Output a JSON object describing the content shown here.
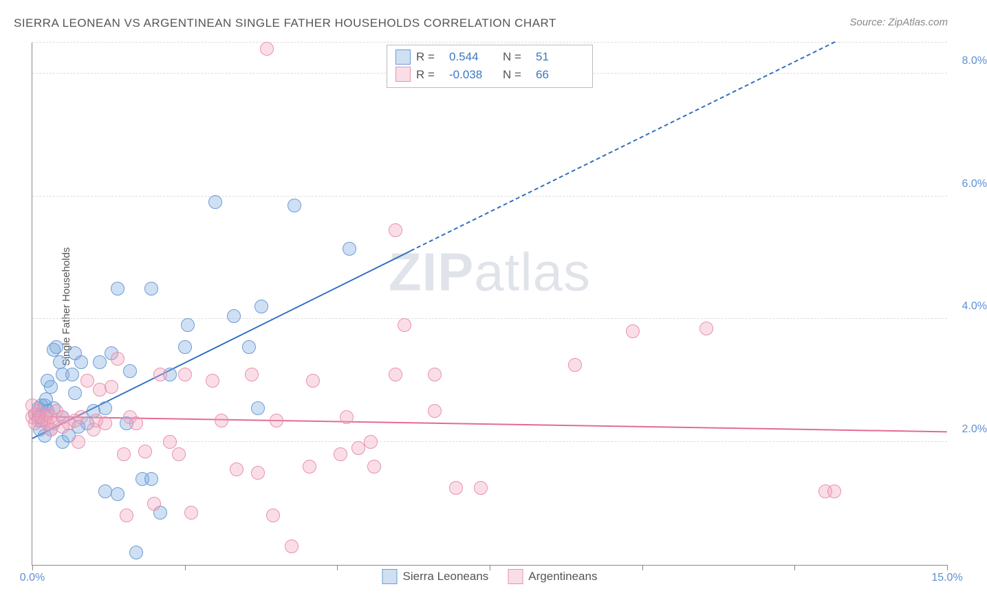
{
  "title": "SIERRA LEONEAN VS ARGENTINEAN SINGLE FATHER HOUSEHOLDS CORRELATION CHART",
  "source_prefix": "Source: ",
  "source_name": "ZipAtlas.com",
  "ylabel": "Single Father Households",
  "watermark_bold": "ZIP",
  "watermark_rest": "atlas",
  "chart": {
    "type": "scatter",
    "xlim": [
      0,
      15
    ],
    "ylim": [
      0,
      8.5
    ],
    "x_ticks": [
      0,
      2.5,
      5,
      7.5,
      10,
      12.5,
      15
    ],
    "x_tick_labels": {
      "0": "0.0%",
      "15": "15.0%"
    },
    "y_gridlines": [
      2,
      4,
      6,
      8,
      8.5
    ],
    "y_tick_labels": {
      "2": "2.0%",
      "4": "4.0%",
      "6": "6.0%",
      "8": "8.0%"
    },
    "background_color": "#ffffff",
    "grid_color": "#dddddd",
    "axis_color": "#888888",
    "marker_radius": 10,
    "marker_stroke_width": 1.5,
    "trend_solid_width": 2.5,
    "trend_dash_width": 2
  },
  "series": [
    {
      "name": "Sierra Leoneans",
      "fill": "rgba(120,165,220,0.35)",
      "stroke": "#6a9bd8",
      "trend_color": "#2f6fc0",
      "R": "0.544",
      "N": "51",
      "trend": {
        "x1": 0.0,
        "y1": 2.05,
        "x2": 6.2,
        "y2": 5.1,
        "x2_dash": 15.0,
        "y2_dash": 9.4
      },
      "points": [
        [
          0.05,
          2.45
        ],
        [
          0.1,
          2.4
        ],
        [
          0.1,
          2.55
        ],
        [
          0.12,
          2.2
        ],
        [
          0.15,
          2.6
        ],
        [
          0.15,
          2.35
        ],
        [
          0.2,
          2.6
        ],
        [
          0.2,
          2.1
        ],
        [
          0.22,
          2.7
        ],
        [
          0.25,
          3.0
        ],
        [
          0.25,
          2.5
        ],
        [
          0.3,
          2.9
        ],
        [
          0.3,
          2.2
        ],
        [
          0.35,
          3.5
        ],
        [
          0.35,
          2.55
        ],
        [
          0.4,
          3.55
        ],
        [
          0.45,
          3.3
        ],
        [
          0.5,
          2.4
        ],
        [
          0.5,
          2.0
        ],
        [
          0.5,
          3.1
        ],
        [
          0.6,
          2.1
        ],
        [
          0.65,
          3.1
        ],
        [
          0.7,
          2.8
        ],
        [
          0.7,
          3.45
        ],
        [
          0.75,
          2.25
        ],
        [
          0.8,
          3.3
        ],
        [
          0.9,
          2.3
        ],
        [
          1.0,
          2.5
        ],
        [
          1.1,
          3.3
        ],
        [
          1.2,
          2.55
        ],
        [
          1.2,
          1.2
        ],
        [
          1.3,
          3.45
        ],
        [
          1.4,
          4.5
        ],
        [
          1.4,
          1.15
        ],
        [
          1.55,
          2.3
        ],
        [
          1.6,
          3.15
        ],
        [
          1.7,
          0.2
        ],
        [
          1.8,
          1.4
        ],
        [
          1.95,
          1.4
        ],
        [
          1.95,
          4.5
        ],
        [
          2.1,
          0.85
        ],
        [
          2.25,
          3.1
        ],
        [
          2.5,
          3.55
        ],
        [
          2.55,
          3.9
        ],
        [
          3.0,
          5.9
        ],
        [
          3.3,
          4.05
        ],
        [
          3.55,
          3.55
        ],
        [
          3.7,
          2.55
        ],
        [
          3.75,
          4.2
        ],
        [
          4.3,
          5.85
        ],
        [
          5.2,
          5.15
        ]
      ]
    },
    {
      "name": "Argentineans",
      "fill": "rgba(240,160,185,0.35)",
      "stroke": "#e890ae",
      "trend_color": "#e26a94",
      "R": "-0.038",
      "N": "66",
      "trend": {
        "x1": 0.0,
        "y1": 2.4,
        "x2": 15.0,
        "y2": 2.15
      },
      "points": [
        [
          0.0,
          2.6
        ],
        [
          0.0,
          2.4
        ],
        [
          0.05,
          2.45
        ],
        [
          0.05,
          2.3
        ],
        [
          0.1,
          2.35
        ],
        [
          0.1,
          2.5
        ],
        [
          0.15,
          2.4
        ],
        [
          0.2,
          2.35
        ],
        [
          0.25,
          2.3
        ],
        [
          0.25,
          2.45
        ],
        [
          0.3,
          2.4
        ],
        [
          0.3,
          2.2
        ],
        [
          0.35,
          2.3
        ],
        [
          0.4,
          2.5
        ],
        [
          0.5,
          2.25
        ],
        [
          0.5,
          2.4
        ],
        [
          0.6,
          2.3
        ],
        [
          0.7,
          2.35
        ],
        [
          0.75,
          2.0
        ],
        [
          0.8,
          2.4
        ],
        [
          0.9,
          3.0
        ],
        [
          1.0,
          2.2
        ],
        [
          1.05,
          2.35
        ],
        [
          1.1,
          2.85
        ],
        [
          1.2,
          2.3
        ],
        [
          1.3,
          2.9
        ],
        [
          1.4,
          3.35
        ],
        [
          1.5,
          1.8
        ],
        [
          1.6,
          2.4
        ],
        [
          1.55,
          0.8
        ],
        [
          1.7,
          2.3
        ],
        [
          1.85,
          1.85
        ],
        [
          2.0,
          1.0
        ],
        [
          2.1,
          3.1
        ],
        [
          2.25,
          2.0
        ],
        [
          2.4,
          1.8
        ],
        [
          2.5,
          3.1
        ],
        [
          2.6,
          0.85
        ],
        [
          2.95,
          3.0
        ],
        [
          3.1,
          2.35
        ],
        [
          3.35,
          1.55
        ],
        [
          3.6,
          3.1
        ],
        [
          3.7,
          1.5
        ],
        [
          3.85,
          8.4
        ],
        [
          3.95,
          0.8
        ],
        [
          4.0,
          2.35
        ],
        [
          4.25,
          0.3
        ],
        [
          4.55,
          1.6
        ],
        [
          4.6,
          3.0
        ],
        [
          5.05,
          1.8
        ],
        [
          5.15,
          2.4
        ],
        [
          5.35,
          1.9
        ],
        [
          5.55,
          2.0
        ],
        [
          5.6,
          1.6
        ],
        [
          5.95,
          3.1
        ],
        [
          5.95,
          5.45
        ],
        [
          6.1,
          3.9
        ],
        [
          6.6,
          2.5
        ],
        [
          6.6,
          3.1
        ],
        [
          6.95,
          1.25
        ],
        [
          7.35,
          1.25
        ],
        [
          8.9,
          3.25
        ],
        [
          9.85,
          3.8
        ],
        [
          11.05,
          3.85
        ],
        [
          13.0,
          1.2
        ],
        [
          13.15,
          1.2
        ]
      ]
    }
  ],
  "legend_top": {
    "R_label": "R =",
    "N_label": "N ="
  },
  "legend_bottom_order": [
    0,
    1
  ]
}
